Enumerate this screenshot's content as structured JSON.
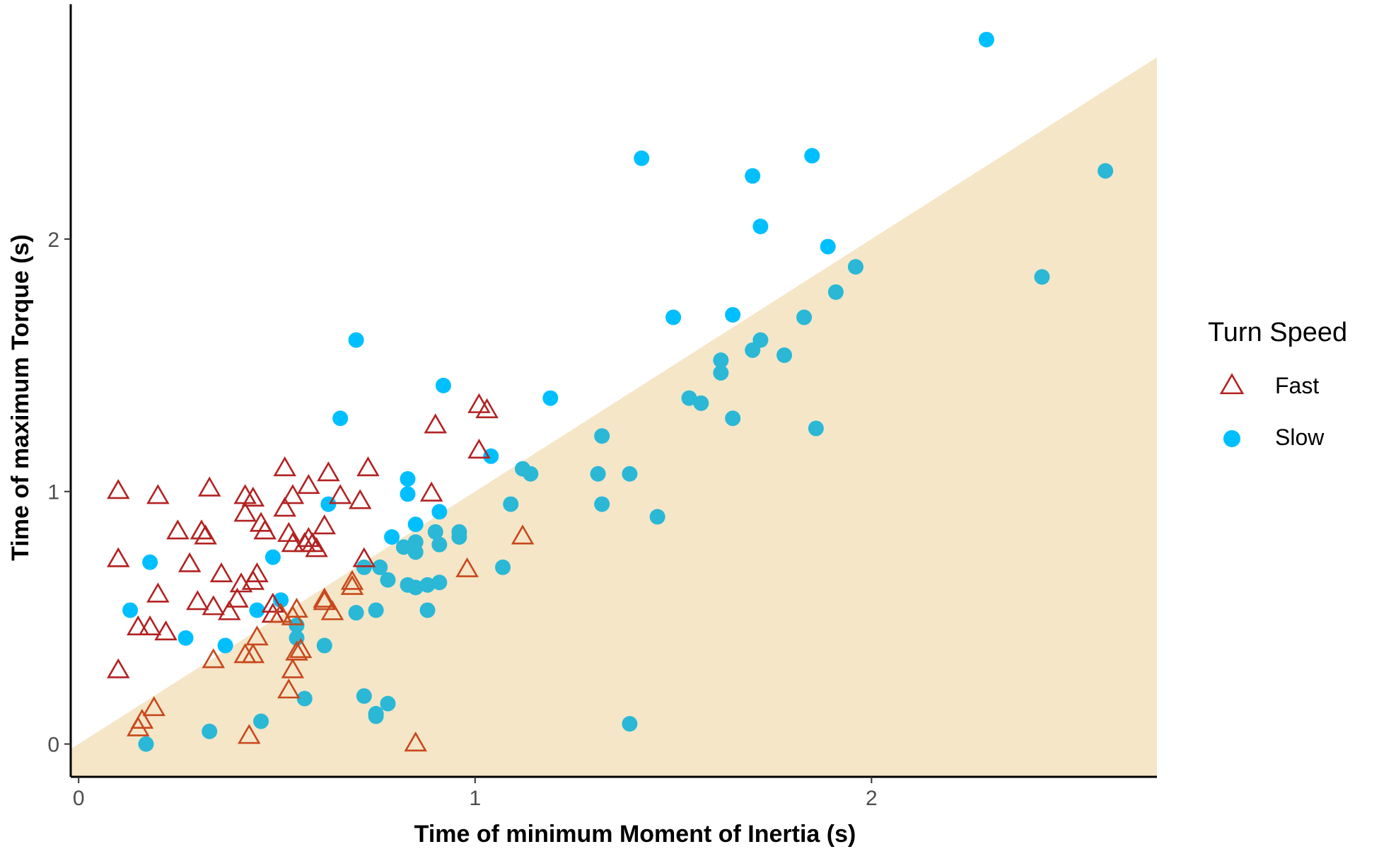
{
  "chart_data": {
    "type": "scatter",
    "title": "",
    "xlabel": "Time of minimum Moment of Inertia (s)",
    "ylabel": "Time of maximum Torque (s)",
    "xlim": [
      -0.02,
      2.72
    ],
    "ylim": [
      -0.13,
      2.93
    ],
    "x_ticks": [
      0,
      1,
      2
    ],
    "y_ticks": [
      0,
      1,
      2
    ],
    "grid": false,
    "legend": {
      "title": "Turn Speed",
      "position": "right"
    },
    "shaded_region": {
      "description_boundary": "y = x",
      "color": "#f5e6c8",
      "below_line": true
    },
    "colors": {
      "fast": "#b22222",
      "slow": "#00bfff",
      "slow_in_region": "#2ab8d6",
      "axis": "#000000"
    },
    "series": [
      {
        "name": "Fast",
        "marker": "triangle-open",
        "color": "#b22222",
        "x": [
          0.1,
          0.2,
          0.33,
          0.42,
          0.44,
          0.52,
          0.54,
          0.58,
          0.63,
          0.71,
          0.73,
          0.25,
          0.31,
          0.32,
          0.42,
          0.46,
          0.47,
          0.53,
          0.54,
          0.58,
          0.59,
          0.62,
          0.66,
          0.1,
          0.2,
          0.28,
          0.36,
          0.41,
          0.45,
          0.52,
          0.57,
          0.6,
          0.72,
          0.98,
          0.3,
          0.34,
          0.38,
          0.4,
          0.44,
          0.49,
          0.51,
          0.55,
          0.62,
          0.64,
          0.69,
          0.15,
          0.18,
          0.22,
          0.45,
          0.49,
          0.54,
          0.56,
          0.1,
          0.34,
          0.42,
          0.44,
          0.54,
          0.55,
          0.16,
          0.15,
          0.19,
          0.43,
          0.85,
          1.01,
          1.03,
          0.9,
          1.01,
          0.89,
          1.12,
          0.69,
          0.62,
          0.51,
          0.53
        ],
        "y": [
          1.0,
          0.98,
          1.01,
          0.98,
          0.97,
          1.09,
          0.98,
          1.02,
          1.07,
          0.96,
          1.09,
          0.84,
          0.84,
          0.82,
          0.91,
          0.87,
          0.84,
          0.83,
          0.79,
          0.81,
          0.79,
          0.86,
          0.98,
          0.73,
          0.59,
          0.71,
          0.67,
          0.63,
          0.67,
          0.93,
          0.79,
          0.77,
          0.73,
          0.69,
          0.56,
          0.54,
          0.52,
          0.57,
          0.64,
          0.55,
          0.51,
          0.53,
          0.57,
          0.52,
          0.64,
          0.46,
          0.46,
          0.44,
          0.42,
          0.51,
          0.5,
          0.37,
          0.29,
          0.33,
          0.35,
          0.35,
          0.29,
          0.36,
          0.09,
          0.06,
          0.14,
          0.03,
          0.0,
          1.34,
          1.32,
          1.26,
          1.16,
          0.99,
          0.82,
          0.62,
          0.56,
          0.51,
          0.21
        ]
      },
      {
        "name": "Slow",
        "marker": "circle",
        "color": "#00bfff",
        "x": [
          2.29,
          1.42,
          1.7,
          1.85,
          1.72,
          2.59,
          1.89,
          1.96,
          2.43,
          1.5,
          1.91,
          1.65,
          1.83,
          1.72,
          1.7,
          1.78,
          1.62,
          1.62,
          1.54,
          1.57,
          1.65,
          1.86,
          1.19,
          1.32,
          1.12,
          1.14,
          1.31,
          1.39,
          1.32,
          1.46,
          1.09,
          1.04,
          1.07,
          1.39,
          0.7,
          0.66,
          0.92,
          0.83,
          0.83,
          0.91,
          0.9,
          0.85,
          0.79,
          0.85,
          0.82,
          0.91,
          0.96,
          0.96,
          0.63,
          0.91,
          0.85,
          0.88,
          0.76,
          0.78,
          0.83,
          0.88,
          0.85,
          0.72,
          0.75,
          0.7,
          0.75,
          0.51,
          0.49,
          0.45,
          0.27,
          0.18,
          0.13,
          0.55,
          0.55,
          0.37,
          0.62,
          0.57,
          0.72,
          0.78,
          0.75,
          0.46,
          0.33,
          0.17
        ],
        "y": [
          2.79,
          2.32,
          2.25,
          2.33,
          2.05,
          2.27,
          1.97,
          1.89,
          1.85,
          1.69,
          1.79,
          1.7,
          1.69,
          1.6,
          1.56,
          1.54,
          1.47,
          1.52,
          1.37,
          1.35,
          1.29,
          1.25,
          1.37,
          1.22,
          1.09,
          1.07,
          1.07,
          1.07,
          0.95,
          0.9,
          0.95,
          1.14,
          0.7,
          0.08,
          1.6,
          1.29,
          1.42,
          1.05,
          0.99,
          0.92,
          0.84,
          0.87,
          0.82,
          0.8,
          0.78,
          0.79,
          0.84,
          0.82,
          0.95,
          0.64,
          0.62,
          0.53,
          0.7,
          0.65,
          0.63,
          0.63,
          0.76,
          0.7,
          0.53,
          0.52,
          0.12,
          0.57,
          0.74,
          0.53,
          0.42,
          0.72,
          0.53,
          0.47,
          0.42,
          0.39,
          0.39,
          0.18,
          0.19,
          0.16,
          0.11,
          0.09,
          0.05,
          0.0
        ]
      }
    ]
  }
}
